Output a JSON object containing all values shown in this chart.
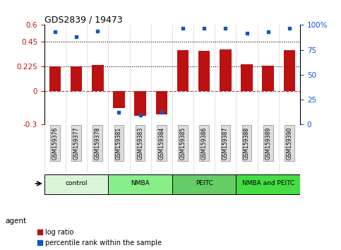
{
  "title": "GDS2839 / 19473",
  "samples": [
    "GSM159376",
    "GSM159377",
    "GSM159378",
    "GSM159381",
    "GSM159383",
    "GSM159384",
    "GSM159385",
    "GSM159386",
    "GSM159387",
    "GSM159388",
    "GSM159389",
    "GSM159390"
  ],
  "log_ratio": [
    0.225,
    0.225,
    0.24,
    -0.15,
    -0.22,
    -0.21,
    0.37,
    0.365,
    0.38,
    0.245,
    0.23,
    0.375
  ],
  "percentile_rank": [
    0.93,
    0.88,
    0.94,
    0.12,
    0.09,
    0.12,
    0.97,
    0.97,
    0.97,
    0.92,
    0.93,
    0.97
  ],
  "bar_color": "#bb1111",
  "dot_color": "#1155cc",
  "groups": [
    {
      "label": "control",
      "start": 0,
      "end": 3,
      "color": "#d8f5d8"
    },
    {
      "label": "NMBA",
      "start": 3,
      "end": 6,
      "color": "#88ee88"
    },
    {
      "label": "PEITC",
      "start": 6,
      "end": 9,
      "color": "#66cc66"
    },
    {
      "label": "NMBA and PEITC",
      "start": 9,
      "end": 12,
      "color": "#44dd44"
    }
  ],
  "ylim_left": [
    -0.3,
    0.6
  ],
  "ylim_right": [
    0,
    100
  ],
  "yticks_left": [
    -0.3,
    0,
    0.225,
    0.45,
    0.6
  ],
  "ytick_labels_left": [
    "-0.3",
    "0",
    "0.225",
    "0.45",
    "0.6"
  ],
  "yticks_right": [
    0,
    25,
    50,
    75,
    100
  ],
  "ytick_labels_right": [
    "0",
    "25",
    "50",
    "75",
    "100%"
  ],
  "hlines": [
    0.225,
    0.45
  ],
  "bar_width": 0.55,
  "background_color": "#ffffff",
  "agent_label": "agent",
  "legend_log_ratio": "log ratio",
  "legend_percentile": "percentile rank within the sample",
  "xlim": [
    -0.5,
    11.5
  ]
}
